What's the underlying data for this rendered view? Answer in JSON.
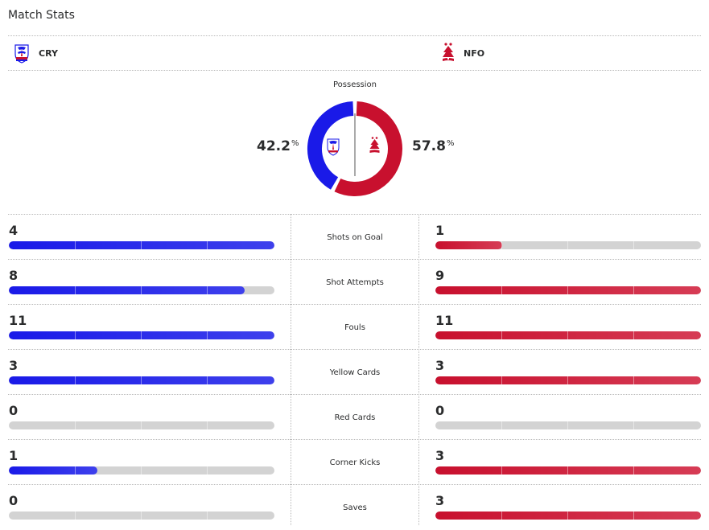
{
  "title": "Match Stats",
  "home": {
    "abbr": "CRY",
    "color": "#1a1ae8",
    "color_light": "#3e40ec",
    "logo_icon": "crystal-palace-crest-icon"
  },
  "away": {
    "abbr": "NFO",
    "color": "#c8102e",
    "color_light": "#d63c55",
    "logo_icon": "nottingham-forest-crest-icon"
  },
  "possession": {
    "label": "Possession",
    "home_value": "42.2",
    "away_value": "57.8",
    "unit": "%"
  },
  "stats": [
    {
      "label": "Shots on Goal",
      "home": "4",
      "away": "1"
    },
    {
      "label": "Shot Attempts",
      "home": "8",
      "away": "9"
    },
    {
      "label": "Fouls",
      "home": "11",
      "away": "11"
    },
    {
      "label": "Yellow Cards",
      "home": "3",
      "away": "3"
    },
    {
      "label": "Red Cards",
      "home": "0",
      "away": "0"
    },
    {
      "label": "Corner Kicks",
      "home": "1",
      "away": "3"
    },
    {
      "label": "Saves",
      "home": "0",
      "away": "3"
    }
  ]
}
